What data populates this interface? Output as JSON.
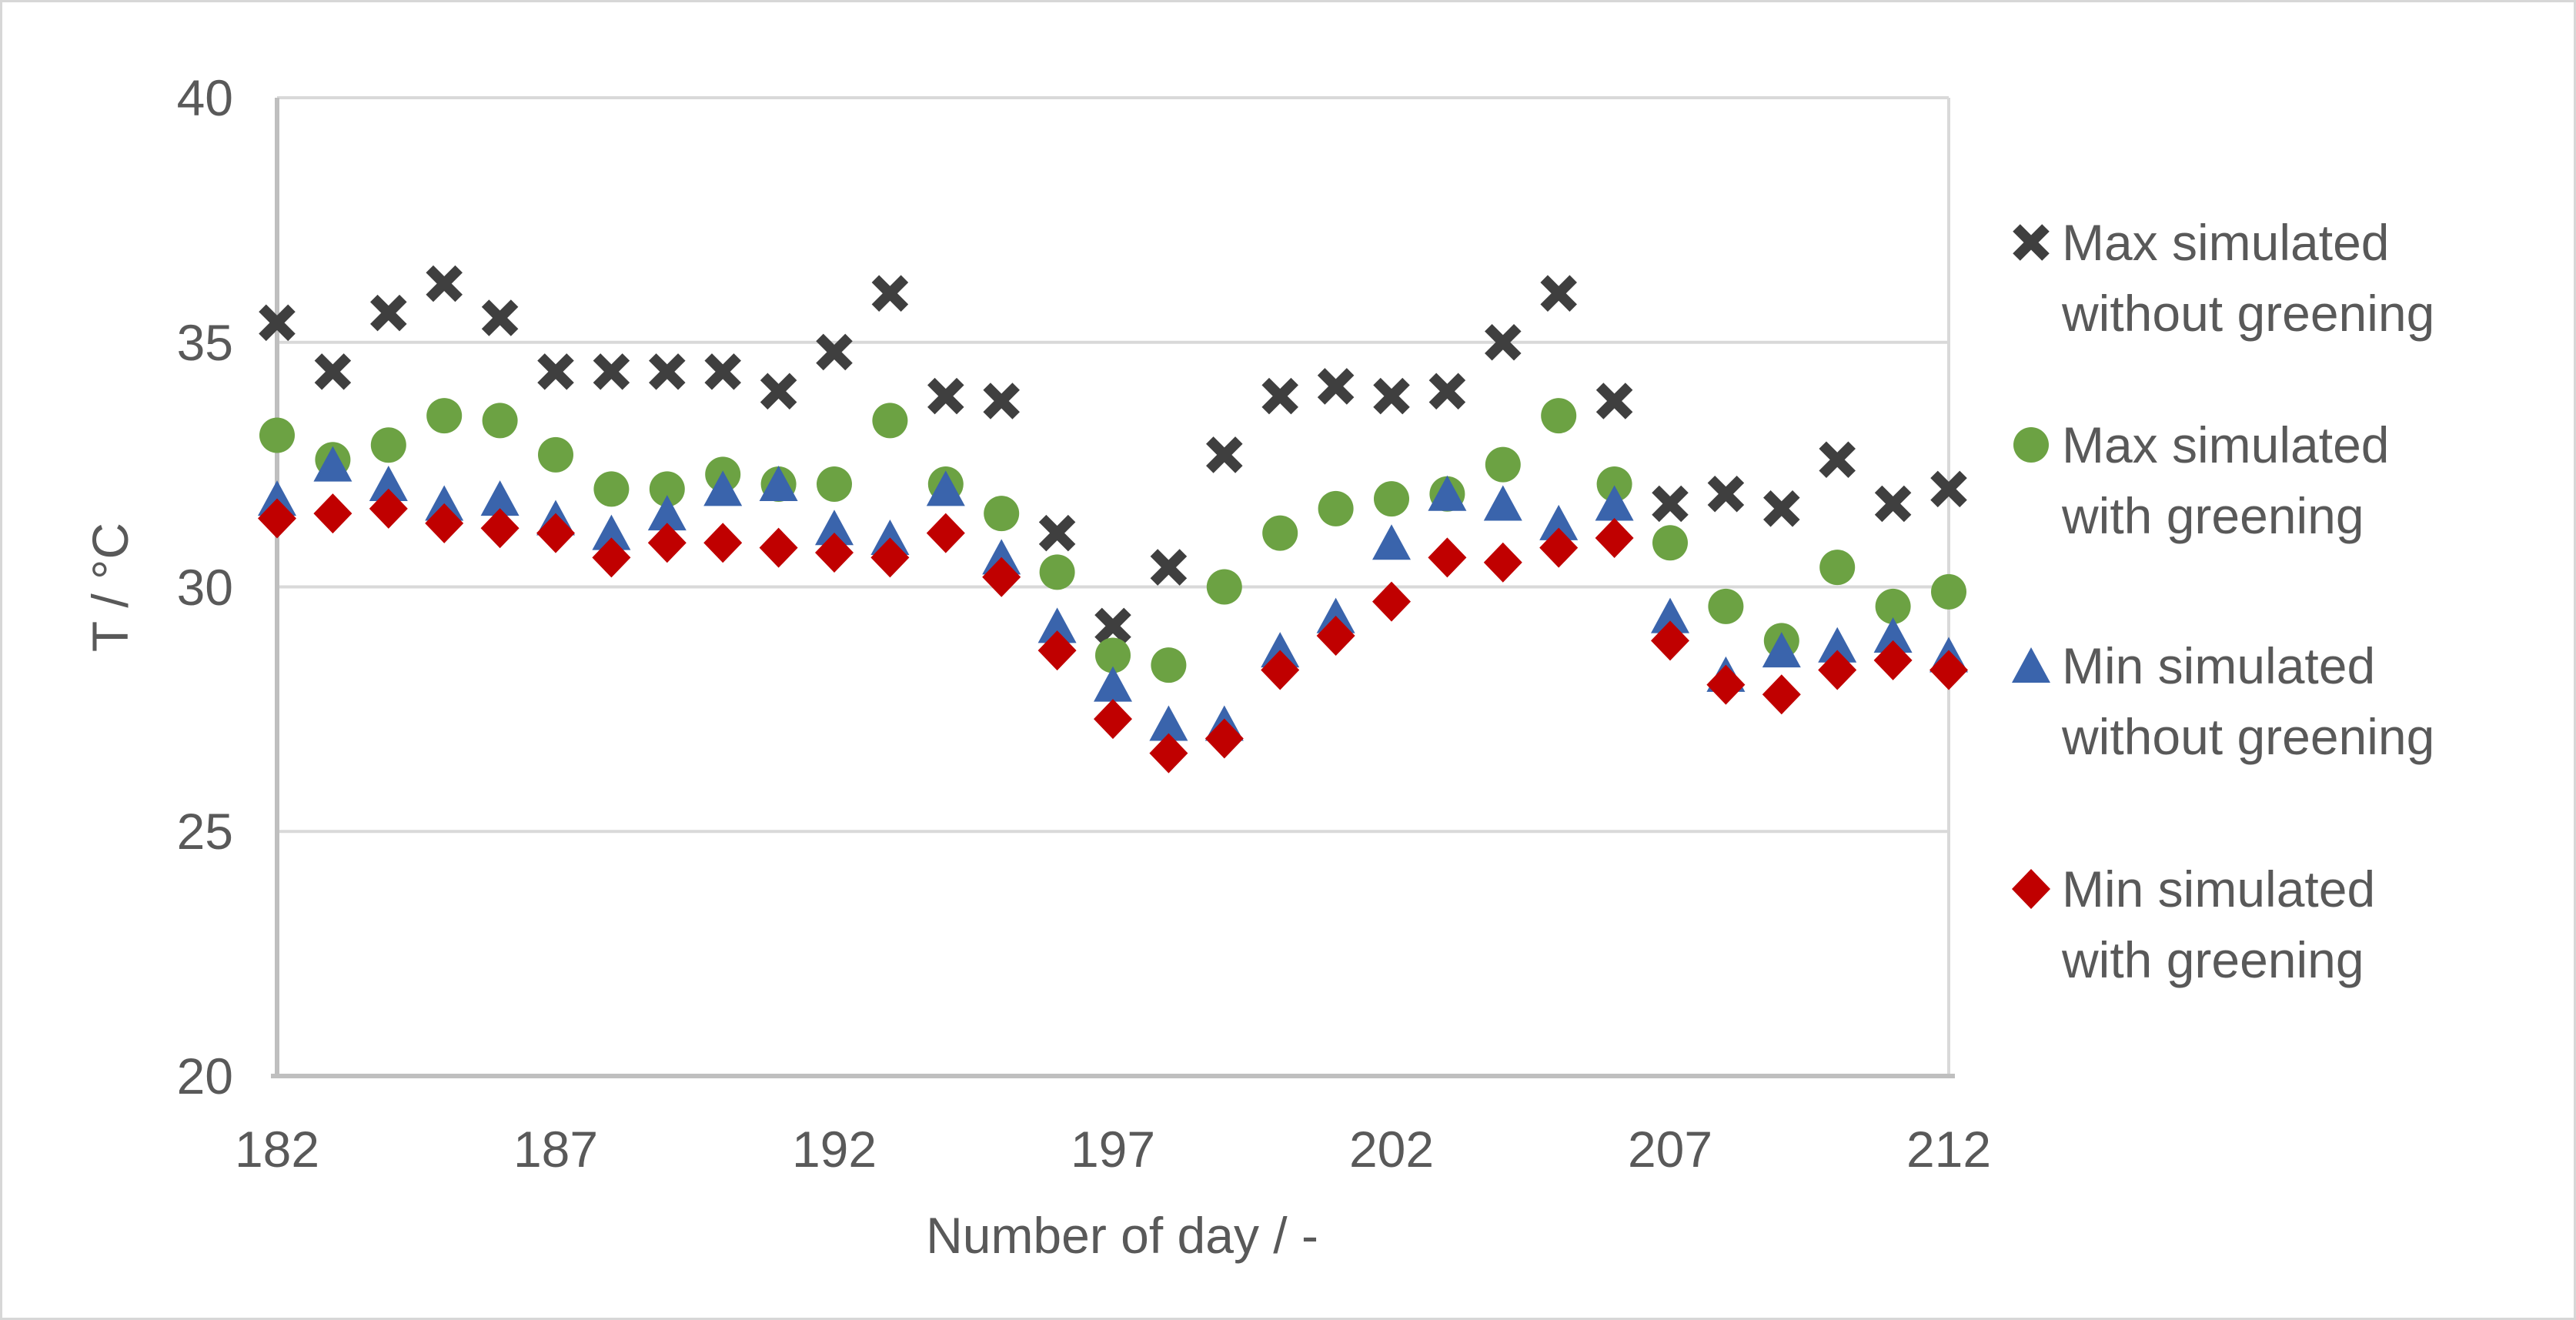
{
  "chart_data": {
    "type": "scatter",
    "title": "",
    "xlabel": "Number of day / -",
    "ylabel": "T / °C",
    "xlim": [
      182,
      212
    ],
    "ylim": [
      20,
      40
    ],
    "x_ticks": [
      182,
      187,
      192,
      197,
      202,
      207,
      212
    ],
    "y_ticks": [
      40,
      35,
      30,
      25,
      20
    ],
    "grid": "horizontal",
    "legend_position": "right",
    "x": [
      182,
      183,
      184,
      185,
      186,
      187,
      188,
      189,
      190,
      191,
      192,
      193,
      194,
      195,
      196,
      197,
      198,
      199,
      200,
      201,
      202,
      203,
      204,
      205,
      206,
      207,
      208,
      209,
      210,
      211,
      212
    ],
    "series": [
      {
        "name": "Max simulated without greening",
        "legend_lines": [
          "Max simulated",
          "without greening"
        ],
        "marker": "x",
        "color": "#3F3F3F",
        "values": [
          35.4,
          34.4,
          35.6,
          36.2,
          35.5,
          34.4,
          34.4,
          34.4,
          34.4,
          34.0,
          34.8,
          36.0,
          33.9,
          33.8,
          31.1,
          29.2,
          30.4,
          32.7,
          33.9,
          34.1,
          33.9,
          34.0,
          35.0,
          36.0,
          33.8,
          31.7,
          31.9,
          31.6,
          32.6,
          31.7,
          32.0
        ]
      },
      {
        "name": "Max simulated with greening",
        "legend_lines": [
          "Max simulated",
          "with greening"
        ],
        "marker": "circle",
        "color": "#6CA243",
        "values": [
          33.1,
          32.6,
          32.9,
          33.5,
          33.4,
          32.7,
          32.0,
          32.0,
          32.3,
          32.1,
          32.1,
          33.4,
          32.1,
          31.5,
          30.3,
          28.6,
          28.4,
          30.0,
          31.1,
          31.6,
          31.8,
          31.9,
          32.5,
          33.5,
          32.1,
          30.9,
          29.6,
          28.9,
          30.4,
          29.6,
          29.9
        ]
      },
      {
        "name": "Min simulated without greening",
        "legend_lines": [
          "Min simulated",
          "without greening"
        ],
        "marker": "triangle",
        "color": "#3A64AC",
        "values": [
          31.8,
          32.5,
          32.1,
          31.7,
          31.8,
          31.4,
          31.1,
          31.5,
          32.0,
          32.1,
          31.2,
          31.0,
          32.0,
          30.6,
          29.2,
          28.0,
          27.2,
          27.2,
          28.7,
          29.4,
          30.9,
          31.9,
          31.7,
          31.3,
          31.7,
          29.4,
          28.2,
          28.7,
          28.8,
          29.0,
          28.6
        ]
      },
      {
        "name": "Min simulated with greening",
        "legend_lines": [
          "Min simulated",
          "with greening"
        ],
        "marker": "diamond",
        "color": "#C00000",
        "values": [
          31.4,
          31.5,
          31.6,
          31.3,
          31.2,
          31.1,
          30.6,
          30.9,
          30.9,
          30.8,
          30.7,
          30.6,
          31.1,
          30.2,
          28.7,
          27.3,
          26.6,
          26.9,
          28.3,
          29.0,
          29.7,
          30.6,
          30.5,
          30.8,
          31.0,
          28.9,
          28.0,
          27.8,
          28.3,
          28.5,
          28.3
        ]
      }
    ],
    "colors": {
      "grid": "#D9D9D9",
      "axis": "#BFBFBF",
      "text": "#595959"
    }
  }
}
